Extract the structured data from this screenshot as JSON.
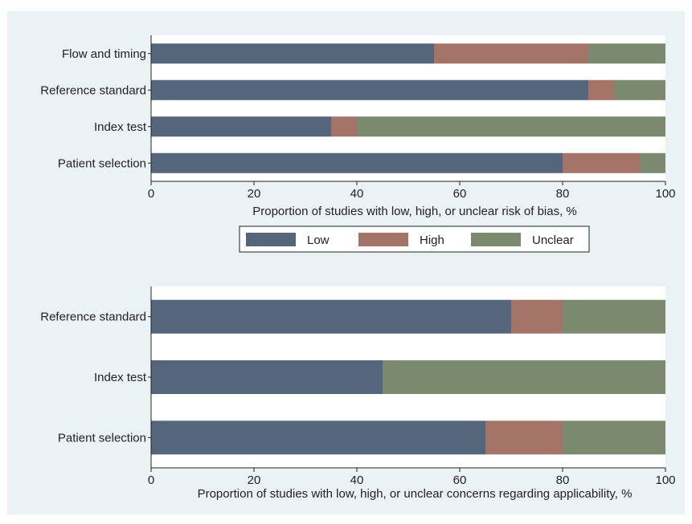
{
  "background": "#eaf2f3",
  "plot_background": "#ffffff",
  "colors": {
    "Low": "#55657c",
    "High": "#a47468",
    "Unclear": "#7b8a6e"
  },
  "legend": {
    "placement": "between-panels",
    "items": [
      "Low",
      "High",
      "Unclear"
    ]
  },
  "chart_data": [
    {
      "type": "bar",
      "orientation": "horizontal",
      "stacked": true,
      "title": "",
      "xlabel": "Proportion of studies with low, high, or unclear risk of bias, %",
      "ylabel": "",
      "xlim": [
        0,
        100
      ],
      "xticks": [
        0,
        20,
        40,
        60,
        80,
        100
      ],
      "grid": false,
      "categories": [
        "Flow and timing",
        "Reference standard",
        "Index test",
        "Patient selection"
      ],
      "series": [
        {
          "name": "Low",
          "values": [
            55,
            85,
            35,
            80
          ]
        },
        {
          "name": "High",
          "values": [
            30,
            5,
            5,
            15
          ]
        },
        {
          "name": "Unclear",
          "values": [
            15,
            10,
            60,
            5
          ]
        }
      ]
    },
    {
      "type": "bar",
      "orientation": "horizontal",
      "stacked": true,
      "title": "",
      "xlabel": "Proportion of studies with low, high, or unclear concerns regarding applicability, %",
      "ylabel": "",
      "xlim": [
        0,
        100
      ],
      "xticks": [
        0,
        20,
        40,
        60,
        80,
        100
      ],
      "grid": false,
      "categories": [
        "Reference standard",
        "Index test",
        "Patient selection"
      ],
      "series": [
        {
          "name": "Low",
          "values": [
            70,
            45,
            65
          ]
        },
        {
          "name": "High",
          "values": [
            10,
            0,
            15
          ]
        },
        {
          "name": "Unclear",
          "values": [
            20,
            55,
            20
          ]
        }
      ]
    }
  ]
}
